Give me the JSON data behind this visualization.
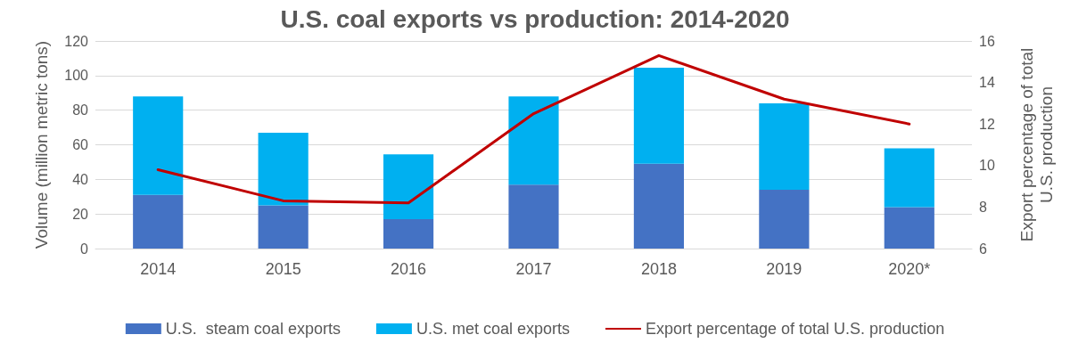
{
  "chart_data": {
    "type": "bar",
    "title": "U.S. coal exports vs production: 2014-2020",
    "categories": [
      "2014",
      "2015",
      "2016",
      "2017",
      "2018",
      "2019",
      "2020*"
    ],
    "stacked": true,
    "series": [
      {
        "name": "U.S.  steam coal exports",
        "color": "#4472c4",
        "values": [
          31,
          25,
          17,
          37,
          49,
          34,
          24
        ]
      },
      {
        "name": "U.S. met coal exports",
        "color": "#00b0f0",
        "values": [
          57,
          42,
          37.5,
          51,
          55.5,
          50,
          34
        ]
      },
      {
        "name": "Export percentage of total U.S. production",
        "type": "line",
        "axis": "y2",
        "color": "#c00000",
        "values": [
          9.8,
          8.3,
          8.2,
          12.5,
          15.3,
          13.2,
          12.0
        ]
      }
    ],
    "ylabel": "Volume (million metric tons)",
    "y2label": "Export percentage of total\nU.S. production",
    "ylim": [
      0,
      120
    ],
    "yticks": [
      0,
      20,
      40,
      60,
      80,
      100,
      120
    ],
    "y2lim": [
      6,
      16
    ],
    "y2ticks": [
      6,
      8,
      10,
      12,
      14,
      16
    ],
    "grid": "y",
    "legend": "bottom",
    "marker": "none",
    "line_style": "solid"
  }
}
